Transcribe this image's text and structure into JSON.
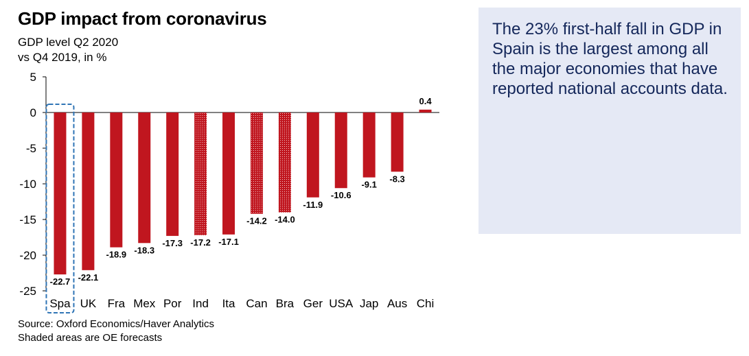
{
  "header": {
    "title": "GDP impact from coronavirus",
    "subtitle": "GDP level  Q2 2020\nvs Q4 2019, in %"
  },
  "footer": {
    "source": "Source: Oxford Economics/Haver Analytics",
    "note": "Shaded areas are OE forecasts"
  },
  "callout": {
    "text": "The 23% first-half fall in GDP in Spain is the largest among all the major economies that have reported national accounts data."
  },
  "colors": {
    "bar": "#c0161f",
    "highlight_box": "#2e74b5",
    "callout_bg": "#e5e9f5",
    "callout_text": "#14275a"
  },
  "chart_data": {
    "type": "bar",
    "categories": [
      "Spa",
      "UK",
      "Fra",
      "Mex",
      "Por",
      "Ind",
      "Ita",
      "Can",
      "Bra",
      "Ger",
      "USA",
      "Jap",
      "Aus",
      "Chi"
    ],
    "values": [
      -22.7,
      -22.1,
      -18.9,
      -18.3,
      -17.3,
      -17.2,
      -17.1,
      -14.2,
      -14.0,
      -11.9,
      -10.6,
      -9.1,
      -8.3,
      0.4
    ],
    "value_labels": [
      "-22.7",
      "-22.1",
      "-18.9",
      "-18.3",
      "-17.3",
      "-17.2",
      "-17.1",
      "-14.2",
      "-14.0",
      "-11.9",
      "-10.6",
      "-9.1",
      "-8.3",
      "0.4"
    ],
    "forecast": [
      false,
      false,
      false,
      false,
      false,
      true,
      false,
      true,
      true,
      false,
      false,
      false,
      false,
      false
    ],
    "highlighted": "Spa",
    "yticks": [
      5,
      0,
      -5,
      -10,
      -15,
      -20,
      -25
    ],
    "ytick_labels": [
      "5",
      "0",
      "-5",
      "-10",
      "-15",
      "-20",
      "-25"
    ],
    "ylim": [
      -25,
      5
    ],
    "grid": false,
    "legend": "none"
  }
}
